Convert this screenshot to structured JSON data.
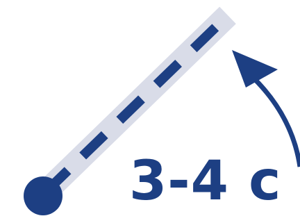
{
  "colors": {
    "primary": "#1d3f83",
    "track": "#d9dce8",
    "background": "#ffffff"
  },
  "icons": {
    "pivot": "pivot-dot-icon",
    "arm": "dashed-arm-icon",
    "arrow": "curved-arrow-icon"
  },
  "label": {
    "duration": "3-4 c"
  }
}
